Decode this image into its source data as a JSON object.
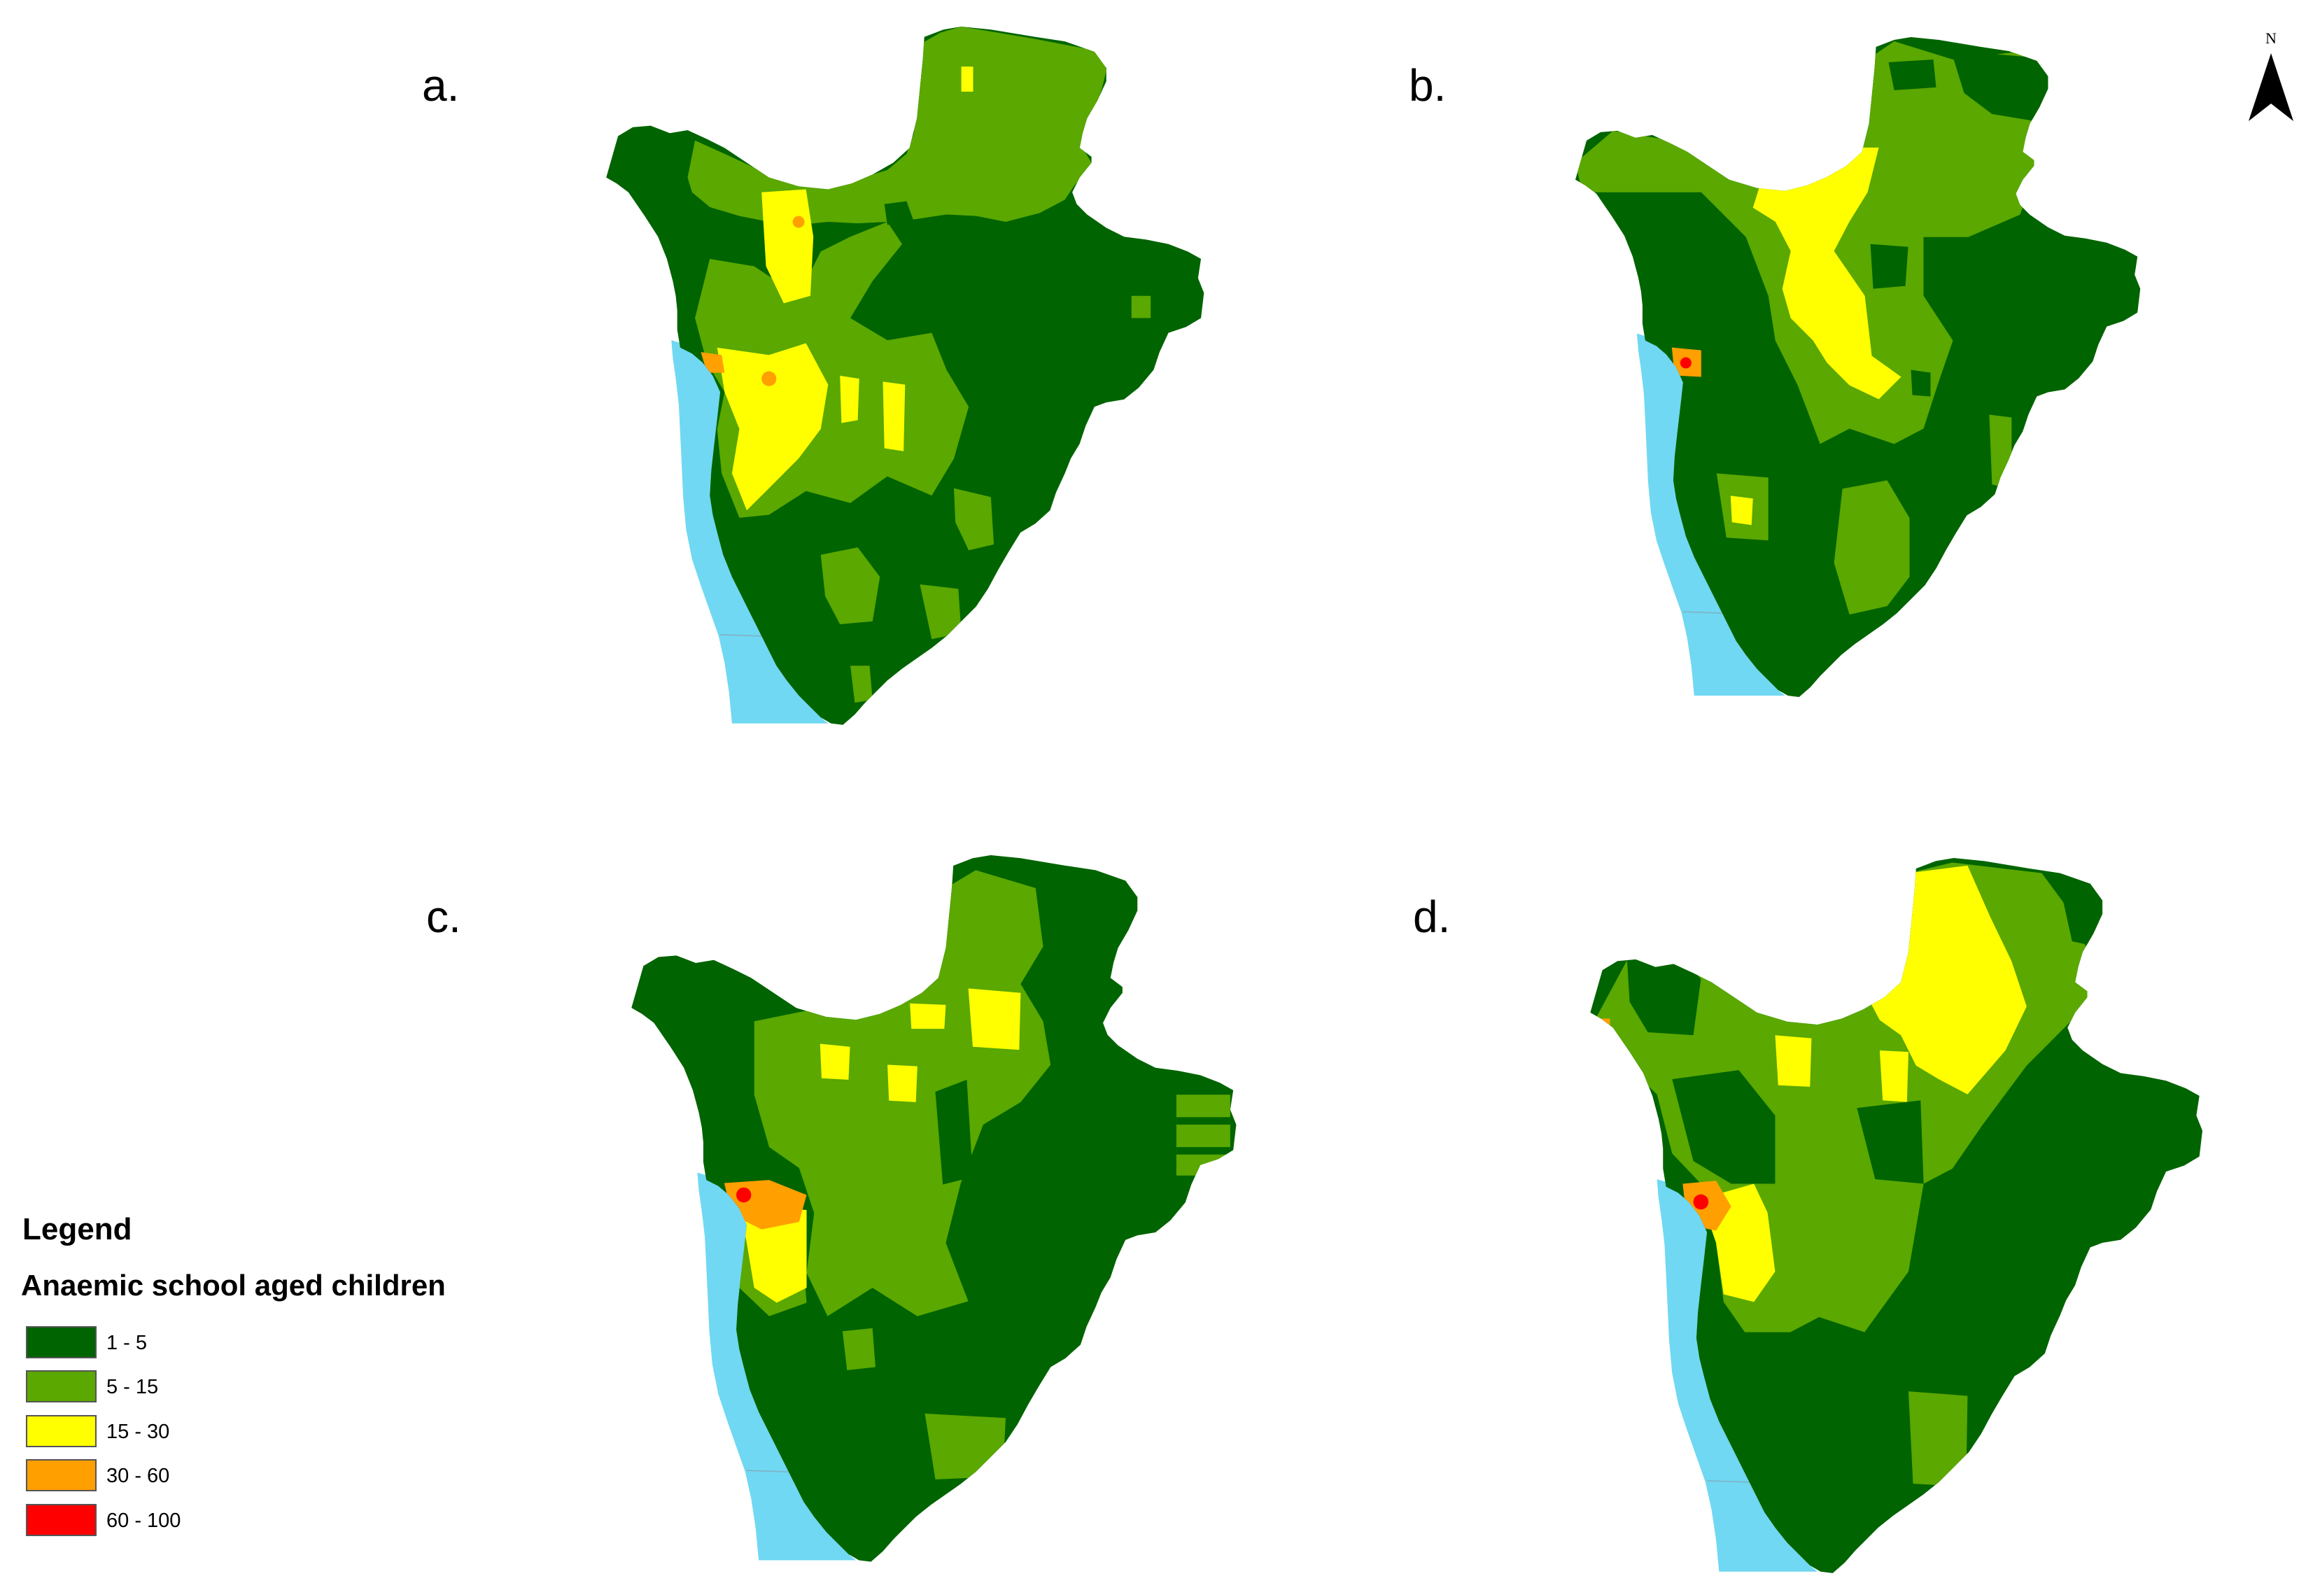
{
  "panels": [
    {
      "label": "a."
    },
    {
      "label": "b."
    },
    {
      "label": "c."
    },
    {
      "label": "d."
    }
  ],
  "north_arrow": {
    "label": "N",
    "icon": "north-arrow-icon"
  },
  "legend": {
    "title": "Legend",
    "subtitle": "Anaemic school aged children",
    "items": [
      {
        "label": "1 - 5",
        "color": "#006400"
      },
      {
        "label": "5 - 15",
        "color": "#5aa800"
      },
      {
        "label": "15 - 30",
        "color": "#ffff00"
      },
      {
        "label": "30 - 60",
        "color": "#ff9f00"
      },
      {
        "label": "60 - 100",
        "color": "#ff0000"
      }
    ]
  },
  "colors": {
    "water": "#70d8f2"
  }
}
